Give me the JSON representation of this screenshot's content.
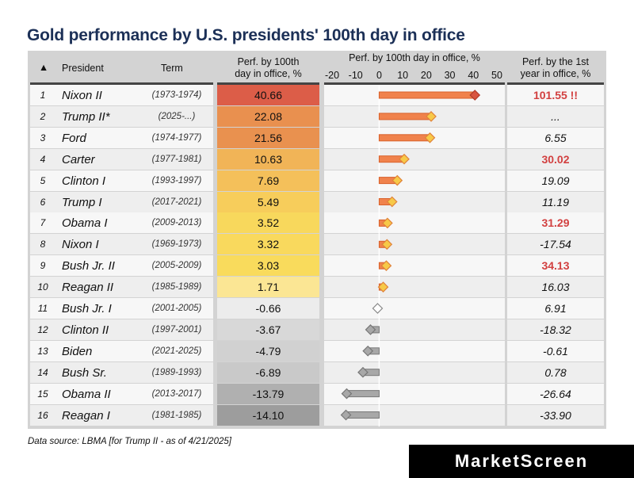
{
  "title": "Gold performance by U.S. presidents' 100th day in office",
  "headers": {
    "sort_icon": "▲",
    "president": "President",
    "term": "Term",
    "perf100_line1": "Perf. by 100th",
    "perf100_line2": "day in office, %",
    "chart_title": "Perf. by 100th day in office, %",
    "year1_line1": "Perf. by the 1st",
    "year1_line2": "year in office, %"
  },
  "rows": [
    {
      "idx": "1",
      "president": "Nixon II",
      "term": "(1973-1974)",
      "perf": "40.66",
      "year1": "101.55 !!",
      "year1_hl": true
    },
    {
      "idx": "2",
      "president": "Trump II*",
      "term": "(2025-...)",
      "perf": "22.08",
      "year1": "...",
      "year1_hl": false
    },
    {
      "idx": "3",
      "president": "Ford",
      "term": "(1974-1977)",
      "perf": "21.56",
      "year1": "6.55",
      "year1_hl": false
    },
    {
      "idx": "4",
      "president": "Carter",
      "term": "(1977-1981)",
      "perf": "10.63",
      "year1": "30.02",
      "year1_hl": true
    },
    {
      "idx": "5",
      "president": "Clinton I",
      "term": "(1993-1997)",
      "perf": "7.69",
      "year1": "19.09",
      "year1_hl": false
    },
    {
      "idx": "6",
      "president": "Trump I",
      "term": "(2017-2021)",
      "perf": "5.49",
      "year1": "11.19",
      "year1_hl": false
    },
    {
      "idx": "7",
      "president": "Obama I",
      "term": "(2009-2013)",
      "perf": "3.52",
      "year1": "31.29",
      "year1_hl": true
    },
    {
      "idx": "8",
      "president": "Nixon I",
      "term": "(1969-1973)",
      "perf": "3.32",
      "year1": "-17.54",
      "year1_hl": false
    },
    {
      "idx": "9",
      "president": "Bush Jr. II",
      "term": "(2005-2009)",
      "perf": "3.03",
      "year1": "34.13",
      "year1_hl": true
    },
    {
      "idx": "10",
      "president": "Reagan II",
      "term": "(1985-1989)",
      "perf": "1.71",
      "year1": "16.03",
      "year1_hl": false
    },
    {
      "idx": "11",
      "president": "Bush Jr. I",
      "term": "(2001-2005)",
      "perf": "-0.66",
      "year1": "6.91",
      "year1_hl": false
    },
    {
      "idx": "12",
      "president": "Clinton II",
      "term": "(1997-2001)",
      "perf": "-3.67",
      "year1": "-18.32",
      "year1_hl": false
    },
    {
      "idx": "13",
      "president": "Biden",
      "term": "(2021-2025)",
      "perf": "-4.79",
      "year1": "-0.61",
      "year1_hl": false
    },
    {
      "idx": "14",
      "president": "Bush Sr.",
      "term": "(1989-1993)",
      "perf": "-6.89",
      "year1": "0.78",
      "year1_hl": false
    },
    {
      "idx": "15",
      "president": "Obama II",
      "term": "(2013-2017)",
      "perf": "-13.79",
      "year1": "-26.64",
      "year1_hl": false
    },
    {
      "idx": "16",
      "president": "Reagan I",
      "term": "(1981-1985)",
      "perf": "-14.10",
      "year1": "-33.90",
      "year1_hl": false
    }
  ],
  "colors": {
    "title": "#1c3057",
    "highlight_text": "#d24040",
    "bar_positive": "#f0824c",
    "bar_negative": "#a8a8a8",
    "marker_positive": "#f7c948",
    "heat": [
      "#dc5d48",
      "#e9904f",
      "#e9914f",
      "#f1b457",
      "#f4c05a",
      "#f7cd5b",
      "#f8d85c",
      "#f9d95d",
      "#f9db5c",
      "#fbe694",
      "#ececec",
      "#d8d8d8",
      "#d1d1d1",
      "#c9c9c9",
      "#b0b0b0",
      "#9d9d9d"
    ]
  },
  "chart_data": {
    "type": "bar",
    "orientation": "horizontal",
    "title": "Perf. by 100th day in office, %",
    "categories": [
      "Nixon II",
      "Trump II*",
      "Ford",
      "Carter",
      "Clinton I",
      "Trump I",
      "Obama I",
      "Nixon I",
      "Bush Jr. II",
      "Reagan II",
      "Bush Jr. I",
      "Clinton II",
      "Biden",
      "Bush Sr.",
      "Obama II",
      "Reagan I"
    ],
    "values": [
      40.66,
      22.08,
      21.56,
      10.63,
      7.69,
      5.49,
      3.52,
      3.32,
      3.03,
      1.71,
      -0.66,
      -3.67,
      -4.79,
      -6.89,
      -13.79,
      -14.1
    ],
    "xlim": [
      -20,
      50
    ],
    "ticks": [
      "-20",
      "-10",
      "0",
      "10",
      "20",
      "30",
      "40",
      "50"
    ],
    "tick_values": [
      -20,
      -10,
      0,
      10,
      20,
      30,
      40,
      50
    ]
  },
  "source": "Data source: LBMA [for Trump II - as of 4/21/2025]",
  "brand": "MarketScreen"
}
